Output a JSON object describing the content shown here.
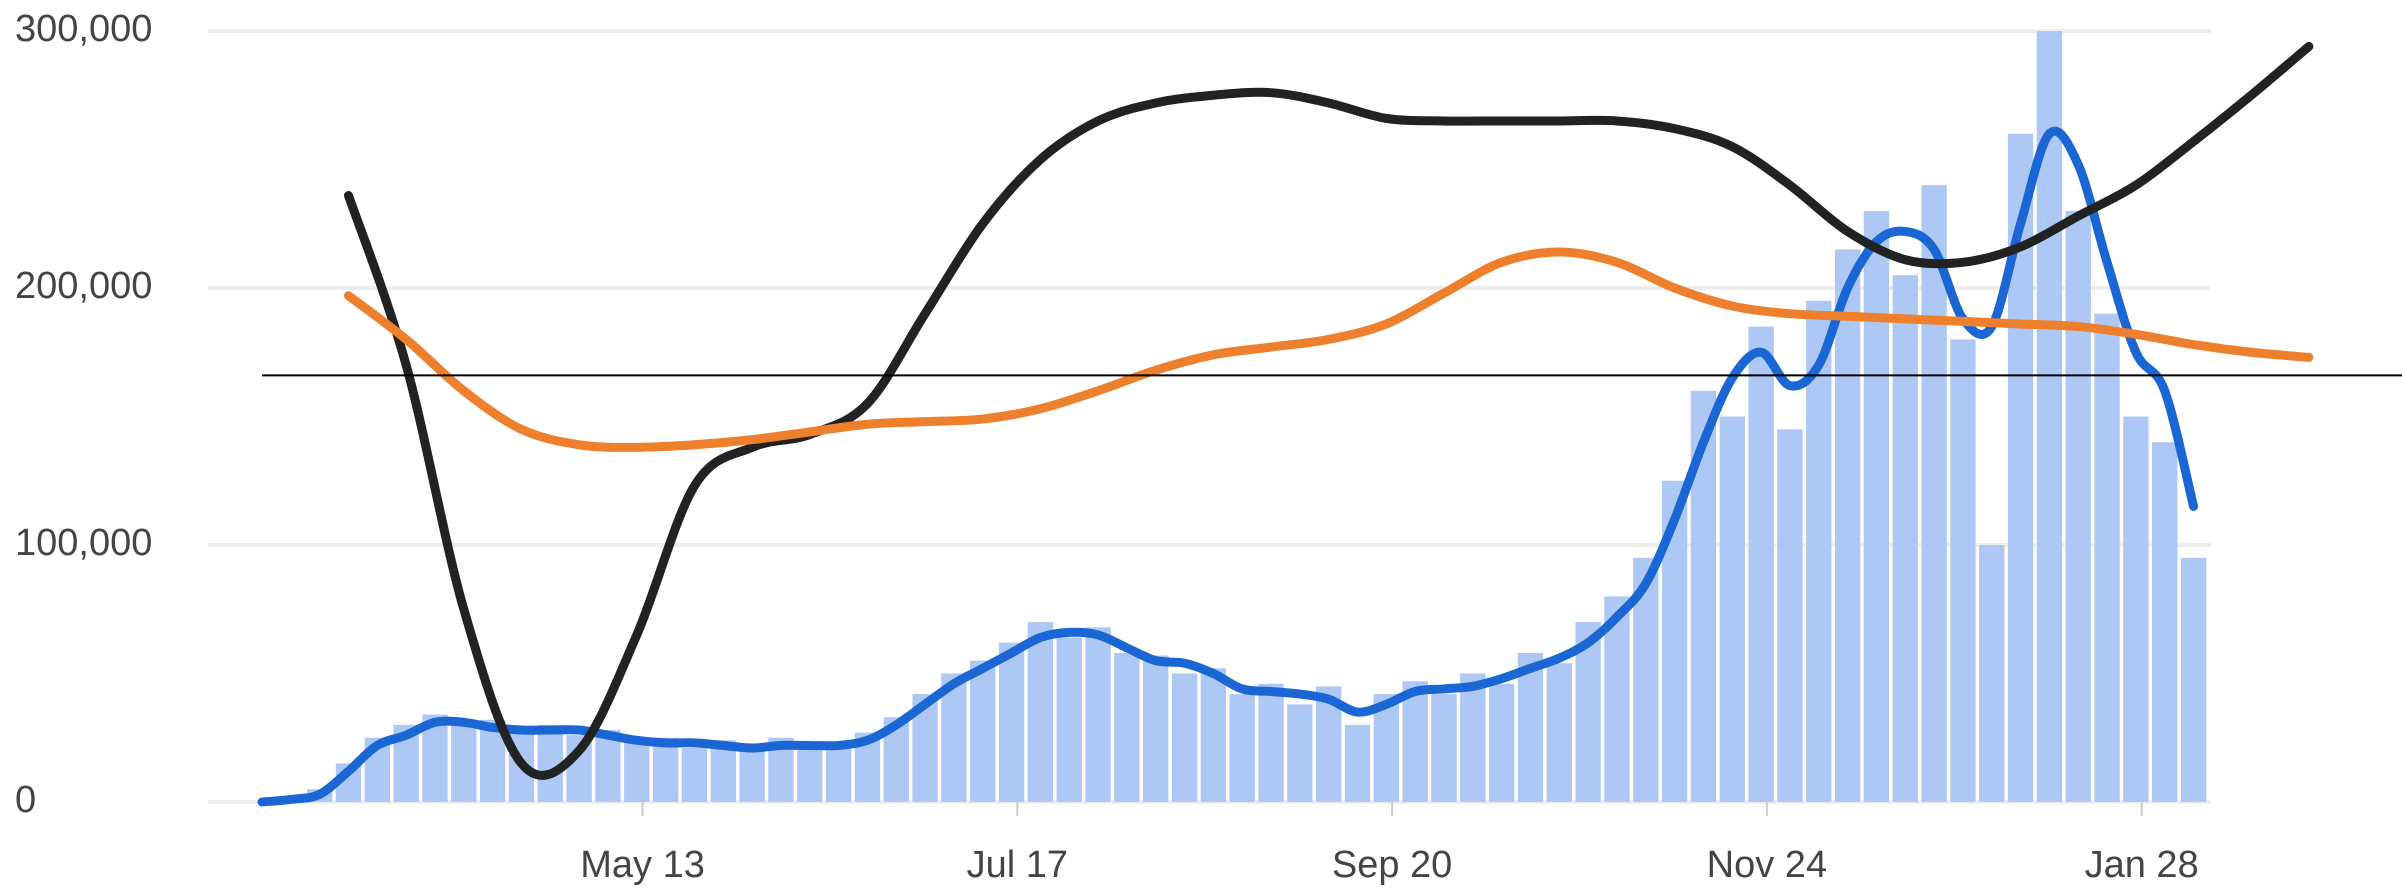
{
  "chart_data": {
    "type": "combo",
    "xlim": [
      0,
      363
    ],
    "xticks": [
      {
        "value": 66,
        "label": "May 13"
      },
      {
        "value": 131,
        "label": "Jul 17"
      },
      {
        "value": 196,
        "label": "Sep 20"
      },
      {
        "value": 261,
        "label": "Nov 24"
      },
      {
        "value": 326,
        "label": "Jan 28"
      }
    ],
    "ylim": [
      0,
      300000
    ],
    "yticks": [
      0,
      {
        "value": 100000,
        "label": "100,000"
      },
      {
        "value": 200000,
        "label": "200,000"
      },
      {
        "value": 300000,
        "label": "300,000"
      }
    ],
    "grid": true,
    "hline": 166000,
    "hline_color": "#000000",
    "series": [
      {
        "type": "bar",
        "color": "#aec8f5",
        "x": [
          0,
          5,
          10,
          15,
          20,
          25,
          30,
          35,
          40,
          45,
          50,
          55,
          60,
          65,
          70,
          75,
          80,
          85,
          90,
          95,
          100,
          105,
          110,
          115,
          120,
          125,
          130,
          135,
          140,
          145,
          150,
          155,
          160,
          165,
          170,
          175,
          180,
          185,
          190,
          195,
          200,
          205,
          210,
          215,
          220,
          225,
          230,
          235,
          240,
          245,
          250,
          255,
          260,
          265,
          270,
          275,
          280,
          285,
          290,
          295,
          300,
          305,
          310,
          315,
          320,
          325,
          330,
          335
        ],
        "values": [
          0,
          1500,
          5000,
          15000,
          25000,
          30000,
          34000,
          30000,
          32000,
          27000,
          30000,
          26000,
          28000,
          23000,
          25000,
          21000,
          24000,
          20000,
          25000,
          21000,
          23000,
          27000,
          33000,
          42000,
          50000,
          55000,
          62000,
          70000,
          64000,
          68000,
          58000,
          57000,
          50000,
          52000,
          42000,
          46000,
          38000,
          45000,
          30000,
          42000,
          47000,
          42000,
          50000,
          46000,
          58000,
          54000,
          70000,
          80000,
          95000,
          125000,
          160000,
          150000,
          185000,
          145000,
          195000,
          215000,
          230000,
          205000,
          240000,
          180000,
          100000,
          260000,
          300000,
          230000,
          190000,
          150000,
          140000,
          95000
        ]
      },
      {
        "type": "line",
        "color": "#1a66d4",
        "x": [
          0,
          5,
          10,
          15,
          20,
          25,
          30,
          35,
          40,
          45,
          50,
          55,
          60,
          65,
          70,
          75,
          80,
          85,
          90,
          95,
          100,
          105,
          110,
          115,
          120,
          125,
          130,
          135,
          140,
          145,
          150,
          155,
          160,
          165,
          170,
          175,
          180,
          185,
          190,
          195,
          200,
          205,
          210,
          215,
          220,
          225,
          230,
          235,
          240,
          245,
          250,
          255,
          260,
          265,
          270,
          275,
          280,
          285,
          290,
          295,
          300,
          305,
          310,
          315,
          320,
          325,
          330,
          335
        ],
        "values": [
          0,
          1000,
          3000,
          12000,
          22000,
          26000,
          31000,
          31000,
          29000,
          28000,
          28000,
          28000,
          26000,
          24000,
          23000,
          23000,
          22000,
          21000,
          22000,
          22000,
          22000,
          24000,
          30000,
          38000,
          46000,
          52000,
          58000,
          64000,
          66000,
          65000,
          60000,
          55000,
          54000,
          50000,
          44000,
          43000,
          42000,
          40000,
          35000,
          38000,
          43000,
          44000,
          45000,
          48000,
          52000,
          56000,
          62000,
          72000,
          85000,
          110000,
          140000,
          165000,
          175000,
          162000,
          170000,
          200000,
          218000,
          222000,
          215000,
          188000,
          185000,
          225000,
          260000,
          248000,
          210000,
          175000,
          160000,
          115000
        ]
      },
      {
        "type": "line",
        "color": "#222222",
        "x": [
          15,
          25,
          35,
          45,
          55,
          65,
          75,
          85,
          95,
          105,
          115,
          125,
          135,
          145,
          155,
          165,
          175,
          185,
          195,
          205,
          215,
          225,
          235,
          245,
          255,
          265,
          275,
          285,
          295,
          305,
          315,
          325,
          335,
          345,
          355
        ],
        "values": [
          236000,
          170000,
          75000,
          15000,
          20000,
          65000,
          123000,
          138000,
          143000,
          155000,
          190000,
          225000,
          250000,
          265000,
          272000,
          275000,
          276000,
          272000,
          266000,
          265000,
          265000,
          265000,
          265000,
          262000,
          255000,
          240000,
          222000,
          211000,
          210000,
          216000,
          228000,
          240000,
          257000,
          275000,
          294000
        ]
      },
      {
        "type": "line",
        "color": "#ee7f2d",
        "x": [
          15,
          25,
          35,
          45,
          55,
          65,
          75,
          85,
          95,
          105,
          115,
          125,
          135,
          145,
          155,
          165,
          175,
          185,
          195,
          205,
          215,
          225,
          235,
          245,
          255,
          265,
          275,
          285,
          295,
          305,
          315,
          325,
          335,
          345,
          355
        ],
        "values": [
          197000,
          180000,
          160000,
          145000,
          139000,
          138000,
          139000,
          141000,
          144000,
          147000,
          148000,
          149000,
          153000,
          160000,
          168000,
          174000,
          177000,
          180000,
          186000,
          198000,
          210000,
          214000,
          210000,
          200000,
          193000,
          190000,
          189000,
          188000,
          187000,
          186000,
          185000,
          182000,
          178000,
          175000,
          173000
        ]
      }
    ]
  }
}
